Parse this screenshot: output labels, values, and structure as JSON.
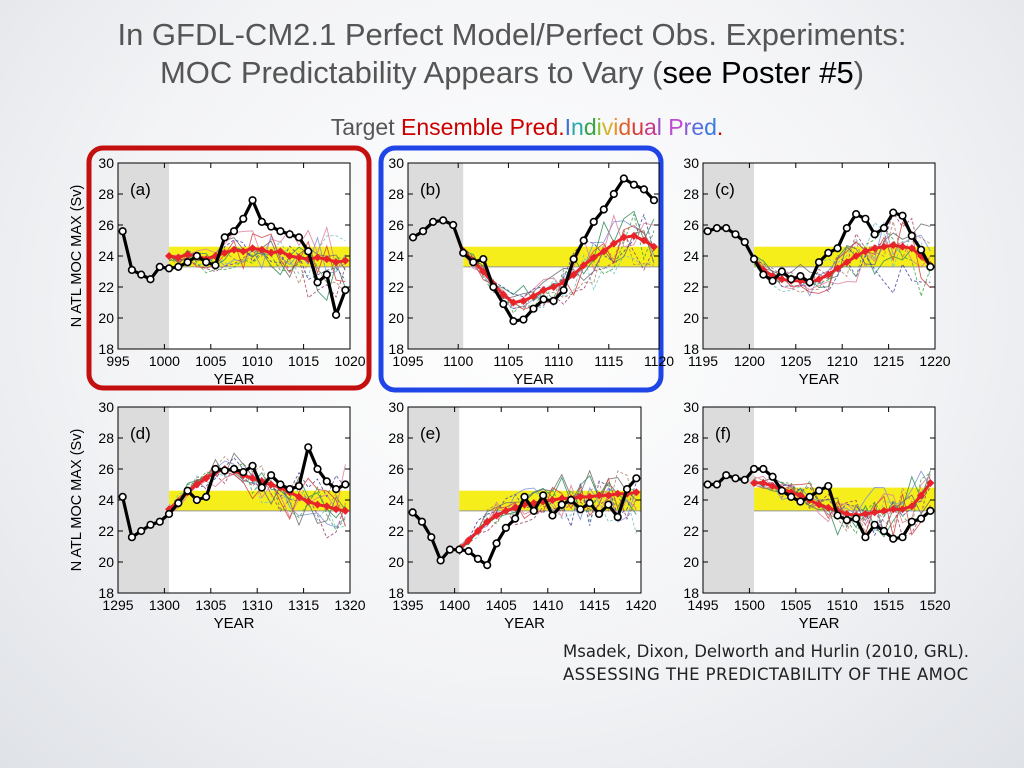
{
  "title": {
    "line1": "In GFDL-CM2.1 Perfect Model/Perfect Obs. Experiments:",
    "line2_prefix": "MOC Predictability Appears to Vary (",
    "line2_highlight": "see Poster #5",
    "line2_suffix": ")"
  },
  "legend_line": {
    "target": "Target",
    "ensemble": "Ensemble Pred.",
    "individual_letters": [
      {
        "ch": "I",
        "color": "#3d6fd6"
      },
      {
        "ch": "n",
        "color": "#2aa7a7"
      },
      {
        "ch": "d",
        "color": "#3aa348"
      },
      {
        "ch": "i",
        "color": "#8bbf2e"
      },
      {
        "ch": "v",
        "color": "#d4b428"
      },
      {
        "ch": "i",
        "color": "#e8902a"
      },
      {
        "ch": "d",
        "color": "#e0622a"
      },
      {
        "ch": "u",
        "color": "#d93a3a"
      },
      {
        "ch": "a",
        "color": "#c83a8a"
      },
      {
        "ch": "l",
        "color": "#9a4fc8"
      }
    ],
    "pred_letters": [
      {
        "ch": "P",
        "color": "#c04ad0"
      },
      {
        "ch": "r",
        "color": "#8c5ad8"
      },
      {
        "ch": "e",
        "color": "#5a6de0"
      },
      {
        "ch": "d",
        "color": "#3a7ae0"
      },
      {
        "ch": ".",
        "color": "#cc0000"
      }
    ],
    "ensemble_color": "#cc0000",
    "target_color": "#555555"
  },
  "colors": {
    "target": "#000000",
    "ensemble": "#e8232a",
    "band": "#f5ee1a",
    "initial_shade": "#dcdcdc",
    "box_a": "#c40f0f",
    "box_b": "#1f45e6",
    "member_colors": [
      "#7b8fd8",
      "#6ac2c2",
      "#2e8b57",
      "#9b3b6a",
      "#e07a9a",
      "#b08060",
      "#6a6a6a",
      "#4040a0",
      "#d04040",
      "#40a040"
    ]
  },
  "citation": {
    "line1": "Msadek, Dixon, Delworth and Hurlin (2010, GRL).",
    "line2": "ASSESSING THE PREDICTABILITY OF THE AMOC"
  },
  "chart_data": [
    {
      "type": "line",
      "panel": "(a)",
      "xlabel": "YEAR",
      "ylabel": "N ATL MOC MAX (Sv)",
      "xlim": [
        995,
        1020
      ],
      "ylim": [
        18,
        30
      ],
      "xticks": [
        995,
        1000,
        1005,
        1010,
        1015,
        1020
      ],
      "yticks": [
        18,
        20,
        22,
        24,
        26,
        28,
        30
      ],
      "init_year": 1000.5,
      "band": [
        23.3,
        24.6
      ],
      "target": {
        "x": [
          995.5,
          996.5,
          997.5,
          998.5,
          999.5,
          1000.5,
          1001.5,
          1002.5,
          1003.5,
          1004.5,
          1005.5,
          1006.5,
          1007.5,
          1008.5,
          1009.5,
          1010.5,
          1011.5,
          1012.5,
          1013.5,
          1014.5,
          1015.5,
          1016.5,
          1017.5,
          1018.5,
          1019.5
        ],
        "y": [
          25.6,
          23.1,
          22.8,
          22.5,
          23.3,
          23.2,
          23.3,
          23.6,
          24.0,
          23.6,
          23.4,
          25.2,
          25.6,
          26.4,
          27.6,
          26.2,
          25.9,
          25.6,
          25.4,
          25.2,
          24.3,
          22.3,
          22.8,
          20.2,
          21.8
        ]
      },
      "ensemble": {
        "x": [
          1000.5,
          1001.5,
          1002.5,
          1003.5,
          1004.5,
          1005.5,
          1006.5,
          1007.5,
          1008.5,
          1009.5,
          1010.5,
          1011.5,
          1012.5,
          1013.5,
          1014.5,
          1015.5,
          1016.5,
          1017.5,
          1018.5,
          1019.5
        ],
        "y": [
          24.0,
          23.9,
          24.1,
          24.0,
          23.8,
          24.0,
          24.2,
          24.4,
          24.3,
          24.5,
          24.4,
          24.2,
          24.3,
          24.0,
          23.9,
          23.8,
          23.9,
          23.8,
          23.6,
          23.7
        ]
      }
    },
    {
      "type": "line",
      "panel": "(b)",
      "xlabel": "YEAR",
      "ylabel": "",
      "xlim": [
        1095,
        1120
      ],
      "ylim": [
        18,
        30
      ],
      "xticks": [
        1095,
        1100,
        1105,
        1110,
        1115,
        1120
      ],
      "yticks": [
        18,
        20,
        22,
        24,
        26,
        28,
        30
      ],
      "init_year": 1100.5,
      "band": [
        23.3,
        24.6
      ],
      "target": {
        "x": [
          1095.5,
          1096.5,
          1097.5,
          1098.5,
          1099.5,
          1100.5,
          1101.5,
          1102.5,
          1103.5,
          1104.5,
          1105.5,
          1106.5,
          1107.5,
          1108.5,
          1109.5,
          1110.5,
          1111.5,
          1112.5,
          1113.5,
          1114.5,
          1115.5,
          1116.5,
          1117.5,
          1118.5,
          1119.5
        ],
        "y": [
          25.2,
          25.6,
          26.2,
          26.3,
          26.0,
          24.2,
          23.6,
          23.8,
          22.0,
          20.9,
          19.8,
          19.9,
          20.6,
          21.2,
          21.1,
          21.8,
          23.8,
          25.0,
          26.2,
          27.0,
          28.0,
          29.0,
          28.6,
          28.3,
          27.6
        ]
      },
      "ensemble": {
        "x": [
          1100.5,
          1101.5,
          1102.5,
          1103.5,
          1104.5,
          1105.5,
          1106.5,
          1107.5,
          1108.5,
          1109.5,
          1110.5,
          1111.5,
          1112.5,
          1113.5,
          1114.5,
          1115.5,
          1116.5,
          1117.5,
          1118.5,
          1119.5
        ],
        "y": [
          24.3,
          23.7,
          23.0,
          22.2,
          21.5,
          21.0,
          21.1,
          21.4,
          21.8,
          22.0,
          22.3,
          22.8,
          23.4,
          23.9,
          24.3,
          24.8,
          25.2,
          25.3,
          25.0,
          24.6
        ]
      }
    },
    {
      "type": "line",
      "panel": "(c)",
      "xlabel": "YEAR",
      "ylabel": "",
      "xlim": [
        1195,
        1220
      ],
      "ylim": [
        18,
        30
      ],
      "xticks": [
        1195,
        1200,
        1205,
        1210,
        1215,
        1220
      ],
      "yticks": [
        18,
        20,
        22,
        24,
        26,
        28,
        30
      ],
      "init_year": 1200.5,
      "band": [
        23.3,
        24.6
      ],
      "target": {
        "x": [
          1195.5,
          1196.5,
          1197.5,
          1198.5,
          1199.5,
          1200.5,
          1201.5,
          1202.5,
          1203.5,
          1204.5,
          1205.5,
          1206.5,
          1207.5,
          1208.5,
          1209.5,
          1210.5,
          1211.5,
          1212.5,
          1213.5,
          1214.5,
          1215.5,
          1216.5,
          1217.5,
          1218.5,
          1219.5
        ],
        "y": [
          25.6,
          25.8,
          25.8,
          25.4,
          24.9,
          23.8,
          22.8,
          22.4,
          23.0,
          22.5,
          22.7,
          22.3,
          23.6,
          24.2,
          24.5,
          25.8,
          26.7,
          26.4,
          25.4,
          25.8,
          26.8,
          26.6,
          25.3,
          24.4,
          23.3
        ]
      },
      "ensemble": {
        "x": [
          1200.5,
          1201.5,
          1202.5,
          1203.5,
          1204.5,
          1205.5,
          1206.5,
          1207.5,
          1208.5,
          1209.5,
          1210.5,
          1211.5,
          1212.5,
          1213.5,
          1214.5,
          1215.5,
          1216.5,
          1217.5,
          1218.5,
          1219.5
        ],
        "y": [
          23.8,
          23.1,
          22.7,
          22.5,
          22.4,
          22.4,
          22.3,
          22.5,
          22.8,
          23.2,
          23.6,
          24.0,
          24.3,
          24.5,
          24.6,
          24.7,
          24.6,
          24.5,
          24.0,
          23.4
        ]
      }
    },
    {
      "type": "line",
      "panel": "(d)",
      "xlabel": "YEAR",
      "ylabel": "N ATL MOC MAX (Sv)",
      "xlim": [
        1295,
        1320
      ],
      "ylim": [
        18,
        30
      ],
      "xticks": [
        1295,
        1300,
        1305,
        1310,
        1315,
        1320
      ],
      "yticks": [
        18,
        20,
        22,
        24,
        26,
        28,
        30
      ],
      "init_year": 1300.5,
      "band": [
        23.3,
        24.6
      ],
      "target": {
        "x": [
          1295.5,
          1296.5,
          1297.5,
          1298.5,
          1299.5,
          1300.5,
          1301.5,
          1302.5,
          1303.5,
          1304.5,
          1305.5,
          1306.5,
          1307.5,
          1308.5,
          1309.5,
          1310.5,
          1311.5,
          1312.5,
          1313.5,
          1314.5,
          1315.5,
          1316.5,
          1317.5,
          1318.5,
          1319.5
        ],
        "y": [
          24.2,
          21.6,
          22.0,
          22.4,
          22.6,
          23.1,
          23.8,
          24.6,
          24.0,
          24.2,
          26.0,
          25.9,
          26.0,
          25.8,
          26.2,
          24.8,
          25.6,
          25.0,
          24.7,
          24.9,
          27.4,
          26.0,
          25.2,
          24.7,
          25.0
        ]
      },
      "ensemble": {
        "x": [
          1300.5,
          1301.5,
          1302.5,
          1303.5,
          1304.5,
          1305.5,
          1306.5,
          1307.5,
          1308.5,
          1309.5,
          1310.5,
          1311.5,
          1312.5,
          1313.5,
          1314.5,
          1315.5,
          1316.5,
          1317.5,
          1318.5,
          1319.5
        ],
        "y": [
          23.4,
          23.9,
          24.5,
          25.0,
          25.4,
          25.8,
          26.0,
          25.9,
          25.6,
          25.4,
          25.2,
          25.0,
          24.8,
          24.5,
          24.2,
          23.9,
          23.7,
          23.6,
          23.4,
          23.3
        ]
      }
    },
    {
      "type": "line",
      "panel": "(e)",
      "xlabel": "YEAR",
      "ylabel": "",
      "xlim": [
        1395,
        1420
      ],
      "ylim": [
        18,
        30
      ],
      "xticks": [
        1395,
        1400,
        1405,
        1410,
        1415,
        1420
      ],
      "yticks": [
        18,
        20,
        22,
        24,
        26,
        28,
        30
      ],
      "init_year": 1400.5,
      "band": [
        23.3,
        24.6
      ],
      "target": {
        "x": [
          1395.5,
          1396.5,
          1397.5,
          1398.5,
          1399.5,
          1400.5,
          1401.5,
          1402.5,
          1403.5,
          1404.5,
          1405.5,
          1406.5,
          1407.5,
          1408.5,
          1409.5,
          1410.5,
          1411.5,
          1412.5,
          1413.5,
          1414.5,
          1415.5,
          1416.5,
          1417.5,
          1418.5,
          1419.5
        ],
        "y": [
          23.2,
          22.6,
          21.6,
          20.1,
          20.8,
          20.8,
          20.7,
          20.2,
          19.8,
          21.2,
          22.2,
          22.8,
          24.2,
          23.3,
          24.3,
          23.0,
          23.7,
          24.0,
          23.4,
          23.8,
          23.1,
          23.7,
          22.9,
          24.7,
          25.4
        ]
      },
      "ensemble": {
        "x": [
          1400.5,
          1401.5,
          1402.5,
          1403.5,
          1404.5,
          1405.5,
          1406.5,
          1407.5,
          1408.5,
          1409.5,
          1410.5,
          1411.5,
          1412.5,
          1413.5,
          1414.5,
          1415.5,
          1416.5,
          1417.5,
          1418.5,
          1419.5
        ],
        "y": [
          20.8,
          21.4,
          22.0,
          22.6,
          23.0,
          23.3,
          23.5,
          23.7,
          23.8,
          23.9,
          24.0,
          24.1,
          24.1,
          24.2,
          24.2,
          24.3,
          24.3,
          24.4,
          24.4,
          24.5
        ]
      }
    },
    {
      "type": "line",
      "panel": "(f)",
      "xlabel": "YEAR",
      "ylabel": "",
      "xlim": [
        1495,
        1520
      ],
      "ylim": [
        18,
        30
      ],
      "xticks": [
        1495,
        1500,
        1505,
        1510,
        1515,
        1520
      ],
      "yticks": [
        18,
        20,
        22,
        24,
        26,
        28,
        30
      ],
      "init_year": 1500.5,
      "band": [
        23.3,
        24.8
      ],
      "target": {
        "x": [
          1495.5,
          1496.5,
          1497.5,
          1498.5,
          1499.5,
          1500.5,
          1501.5,
          1502.5,
          1503.5,
          1504.5,
          1505.5,
          1506.5,
          1507.5,
          1508.5,
          1509.5,
          1510.5,
          1511.5,
          1512.5,
          1513.5,
          1514.5,
          1515.5,
          1516.5,
          1517.5,
          1518.5,
          1519.5
        ],
        "y": [
          25.0,
          25.0,
          25.6,
          25.4,
          25.3,
          26.0,
          26.0,
          25.5,
          24.6,
          24.2,
          23.9,
          24.2,
          24.6,
          24.9,
          23.0,
          22.7,
          22.8,
          21.6,
          22.4,
          22.0,
          21.5,
          21.6,
          22.6,
          22.8,
          23.3
        ]
      },
      "ensemble": {
        "x": [
          1500.5,
          1501.5,
          1502.5,
          1503.5,
          1504.5,
          1505.5,
          1506.5,
          1507.5,
          1508.5,
          1509.5,
          1510.5,
          1511.5,
          1512.5,
          1513.5,
          1514.5,
          1515.5,
          1516.5,
          1517.5,
          1518.5,
          1519.5
        ],
        "y": [
          25.1,
          25.1,
          24.9,
          24.7,
          24.5,
          24.3,
          24.0,
          23.7,
          23.5,
          23.3,
          23.1,
          23.0,
          23.1,
          23.2,
          23.3,
          23.4,
          23.4,
          23.6,
          24.3,
          25.1
        ]
      }
    }
  ]
}
